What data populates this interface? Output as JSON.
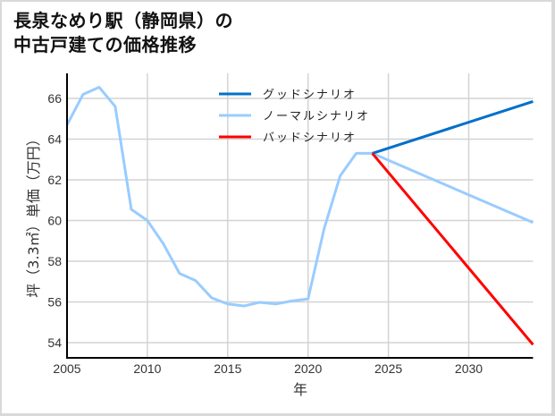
{
  "title": {
    "line1": "長泉なめり駅（静岡県）の",
    "line2": "中古戸建ての価格推移"
  },
  "colors": {
    "good": "#0070C9",
    "normal": "#99CCFF",
    "bad": "#FF0000",
    "grid": "#D3D3D3",
    "axis": "#000000"
  },
  "legend": [
    {
      "key": "good",
      "label": "グッドシナリオ"
    },
    {
      "key": "normal",
      "label": "ノーマルシナリオ"
    },
    {
      "key": "bad",
      "label": "バッドシナリオ"
    }
  ],
  "chart_data": {
    "type": "line",
    "title": "長泉なめり駅（静岡県）の中古戸建ての価格推移",
    "xlabel": "年",
    "ylabel": "坪（3.3㎡）単価（万円）",
    "xlim": [
      2005,
      2034
    ],
    "ylim": [
      53.3,
      67.2
    ],
    "xticks": [
      2005,
      2010,
      2015,
      2020,
      2025,
      2030
    ],
    "yticks": [
      54,
      56,
      58,
      60,
      62,
      64,
      66
    ],
    "grid": true,
    "legend_position": "upper center",
    "series": [
      {
        "name": "ノーマルシナリオ",
        "key": "normal",
        "x": [
          2005,
          2006,
          2007,
          2008,
          2009,
          2010,
          2011,
          2012,
          2013,
          2014,
          2015,
          2016,
          2017,
          2018,
          2019,
          2020,
          2021,
          2022,
          2023,
          2024,
          2034
        ],
        "values": [
          64.7,
          66.2,
          66.55,
          65.6,
          60.55,
          60.0,
          58.85,
          57.4,
          57.05,
          56.2,
          55.9,
          55.8,
          55.98,
          55.9,
          56.05,
          56.15,
          59.6,
          62.2,
          63.3,
          63.3,
          59.9
        ]
      },
      {
        "name": "グッドシナリオ",
        "key": "good",
        "x": [
          2024,
          2034
        ],
        "values": [
          63.3,
          65.85
        ]
      },
      {
        "name": "バッドシナリオ",
        "key": "bad",
        "x": [
          2024,
          2034
        ],
        "values": [
          63.3,
          53.9
        ]
      }
    ]
  }
}
